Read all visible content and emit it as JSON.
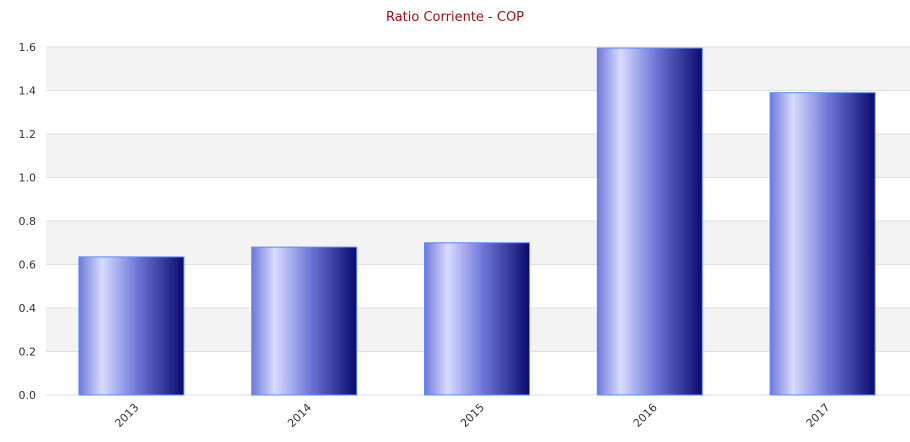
{
  "chart_data": {
    "type": "bar",
    "title": "Ratio Corriente - COP",
    "xlabel": "",
    "ylabel": "",
    "categories": [
      "2013",
      "2014",
      "2015",
      "2016",
      "2017"
    ],
    "values": [
      0.635,
      0.68,
      0.7,
      1.595,
      1.39
    ],
    "ylim": [
      0,
      1.6
    ],
    "yticks": [
      "0.0",
      "0.2",
      "0.4",
      "0.6",
      "0.8",
      "1.0",
      "1.2",
      "1.4",
      "1.6"
    ],
    "grid": true,
    "legend": "none",
    "colors": {
      "bar_light": "#d8dcff",
      "bar_dark": "#0a0a6e",
      "bar_mid": "#6f78d8",
      "band_fill": "#f3f3f3",
      "gridline": "#e0e0e0",
      "title": "#a01010"
    }
  }
}
